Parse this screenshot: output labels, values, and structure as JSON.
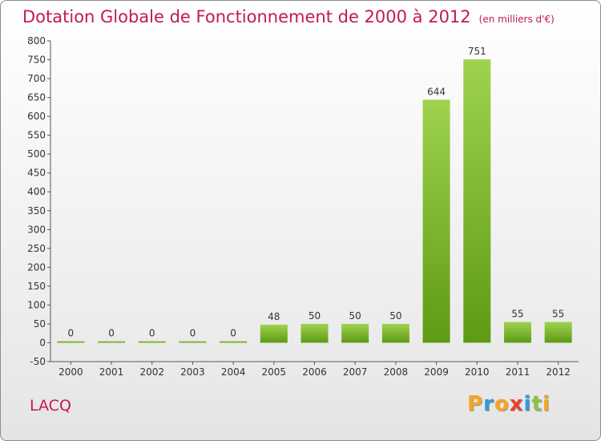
{
  "header": {
    "title": "Dotation Globale de Fonctionnement de 2000 à 2012",
    "subtitle": "(en milliers d'€)"
  },
  "commune": "LACQ",
  "logo": {
    "letters": [
      "P",
      "r",
      "o",
      "x",
      "i",
      "t",
      "i"
    ],
    "colors": [
      "#f5a623",
      "#2e9bd6",
      "#f5a623",
      "#e8412c",
      "#2e9bd6",
      "#8bc34a",
      "#f5a623"
    ]
  },
  "colors": {
    "accent": "#c2185b",
    "bar_light": "#9fd34f",
    "bar_dark": "#5e9a14",
    "axis": "#555555",
    "grid": "#cfcfcf"
  },
  "chart_data": {
    "type": "bar",
    "categories": [
      "2000",
      "2001",
      "2002",
      "2003",
      "2004",
      "2005",
      "2006",
      "2007",
      "2008",
      "2009",
      "2010",
      "2011",
      "2012"
    ],
    "values": [
      0,
      0,
      0,
      0,
      0,
      48,
      50,
      50,
      50,
      644,
      751,
      55,
      55
    ],
    "data_labels": [
      "0",
      "0",
      "0",
      "0",
      "0",
      "48",
      "50",
      "50",
      "50",
      "644",
      "751",
      "55",
      "55"
    ],
    "y_ticks": [
      -50,
      0,
      50,
      100,
      150,
      200,
      250,
      300,
      350,
      400,
      450,
      500,
      550,
      600,
      650,
      700,
      750,
      800
    ],
    "y_tick_labels": [
      "-50",
      "0",
      "50",
      "100",
      "150",
      "200",
      "250",
      "300",
      "350",
      "400",
      "450",
      "500",
      "550",
      "600",
      "650",
      "700",
      "750",
      "800"
    ],
    "ylim": [
      -50,
      800
    ],
    "title": "Dotation Globale de Fonctionnement de 2000 à 2012",
    "xlabel": "",
    "ylabel": "",
    "grid": false,
    "legend": "none"
  }
}
